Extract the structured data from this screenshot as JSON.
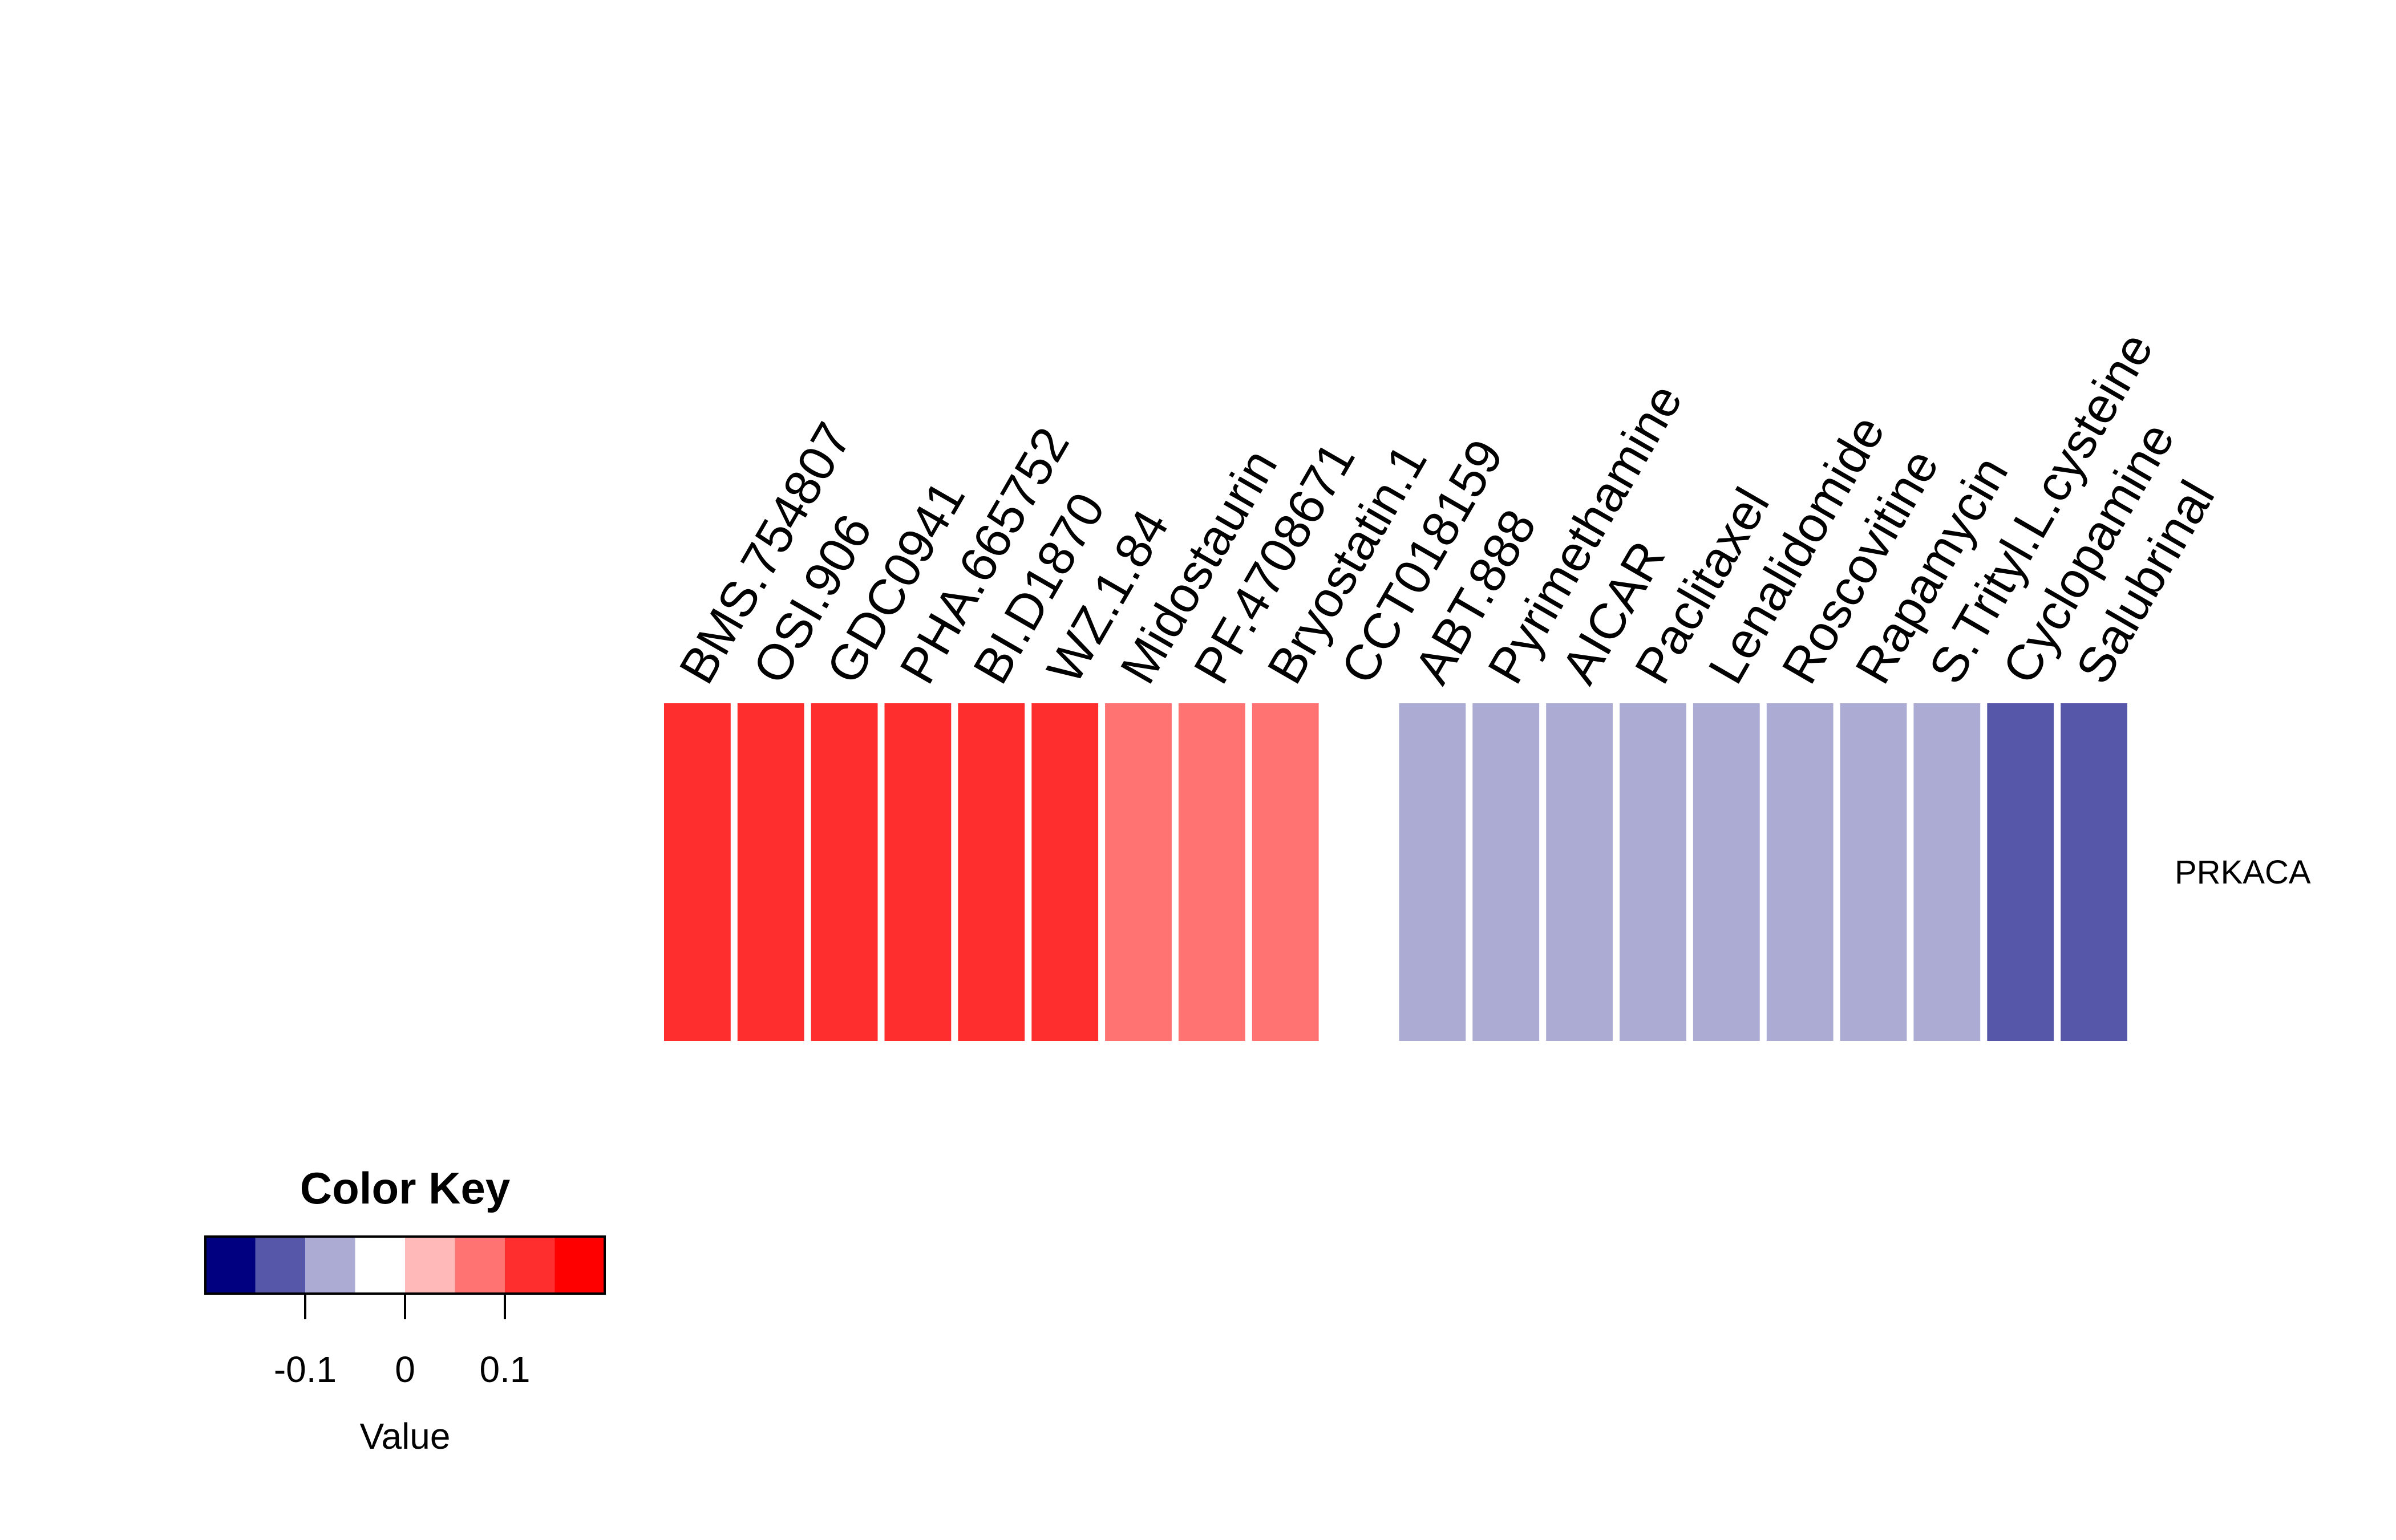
{
  "chart_data": {
    "type": "heatmap",
    "rows": [
      "PRKACA"
    ],
    "columns": [
      "BMS.754807",
      "OSI.906",
      "GDC0941",
      "PHA.665752",
      "BI.D1870",
      "WZ.1.84",
      "Midostaurin",
      "PF.4708671",
      "Bryostatin.1",
      "CCT018159",
      "ABT.888",
      "Pyrimethamine",
      "AICAR",
      "Paclitaxel",
      "Lenalidomide",
      "Roscovitine",
      "Rapamycin",
      "S.Trityl.L.cysteine",
      "Cyclopamine",
      "Salubrinal"
    ],
    "values": [
      [
        0.1,
        0.1,
        0.1,
        0.1,
        0.1,
        0.1,
        0.05,
        0.05,
        0.05,
        -0.05,
        -0.1,
        -0.1,
        -0.1,
        -0.1,
        -0.1,
        -0.1,
        -0.1,
        -0.1,
        -0.15,
        -0.15
      ]
    ],
    "color_key": {
      "title": "Color Key",
      "xlabel": "Value",
      "range": [
        -0.2,
        0.2
      ],
      "breaks": [
        -0.2,
        -0.15,
        -0.1,
        -0.05,
        0.0,
        0.05,
        0.1,
        0.15,
        0.2
      ],
      "colors": [
        "#000080",
        "#5757AA",
        "#ABABD4",
        "#FFFFFF",
        "#FFB9B9",
        "#FF7373",
        "#FF2E2E",
        "#FF0000"
      ],
      "ticks": [
        -0.1,
        0.0,
        0.1
      ],
      "tick_labels": [
        "-0.1",
        "0",
        "0.1"
      ]
    }
  }
}
